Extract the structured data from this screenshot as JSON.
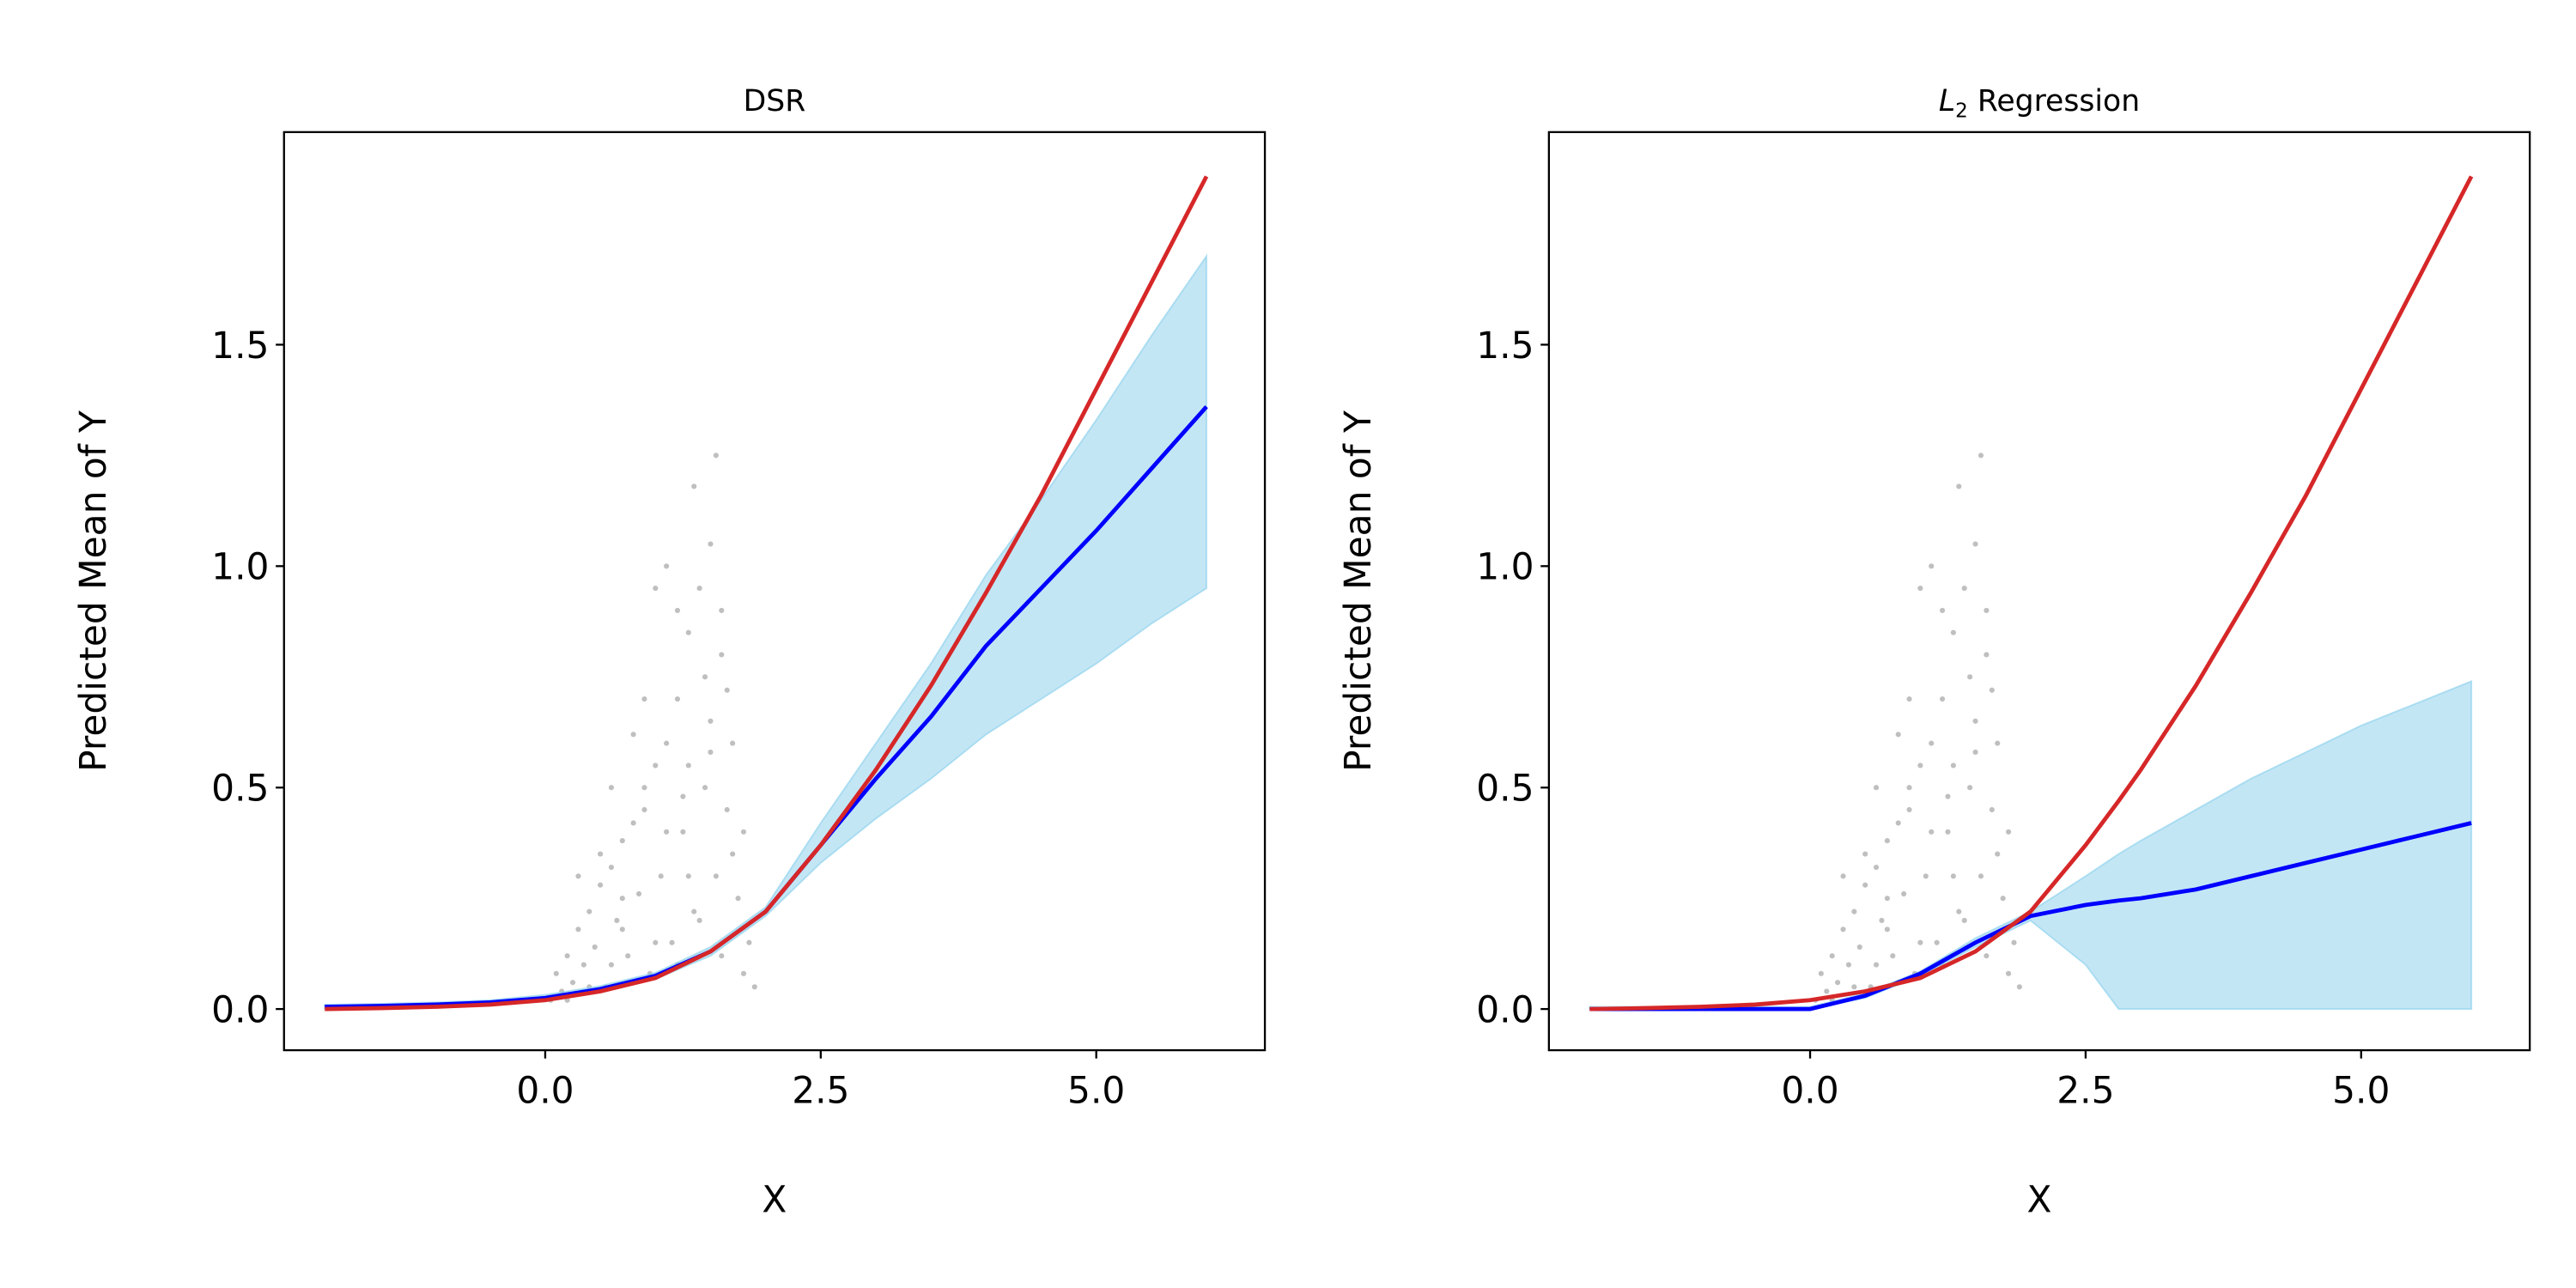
{
  "chart_data": [
    {
      "type": "line",
      "title": "DSR",
      "xlabel": "X",
      "ylabel": "Predicted Mean of Y",
      "xlim": [
        -2.37,
        6.53
      ],
      "ylim": [
        -0.093,
        1.98
      ],
      "xticks": [
        0.0,
        2.5,
        5.0
      ],
      "xtick_labels": [
        "0.0",
        "2.5",
        "5.0"
      ],
      "yticks": [
        0.0,
        0.5,
        1.0,
        1.5
      ],
      "ytick_labels": [
        "0.0",
        "0.5",
        "1.0",
        "1.5"
      ],
      "grid": false,
      "x": [
        -2,
        -1.5,
        -1,
        -0.5,
        0,
        0.5,
        1,
        1.5,
        2,
        2.5,
        3,
        3.5,
        4,
        4.5,
        5,
        5.5,
        6
      ],
      "true_mean": [
        0,
        0.002,
        0.005,
        0.01,
        0.02,
        0.04,
        0.07,
        0.13,
        0.22,
        0.37,
        0.54,
        0.73,
        0.94,
        1.16,
        1.4,
        1.64,
        1.88
      ],
      "predicted_mean": [
        0.005,
        0.007,
        0.01,
        0.015,
        0.025,
        0.045,
        0.075,
        0.13,
        0.22,
        0.37,
        0.52,
        0.66,
        0.82,
        0.95,
        1.08,
        1.22,
        1.36
      ],
      "band_lower": [
        0.0,
        0.002,
        0.005,
        0.01,
        0.018,
        0.038,
        0.068,
        0.12,
        0.21,
        0.33,
        0.43,
        0.52,
        0.62,
        0.7,
        0.78,
        0.87,
        0.95
      ],
      "band_upper": [
        0.01,
        0.012,
        0.015,
        0.02,
        0.032,
        0.052,
        0.082,
        0.14,
        0.23,
        0.42,
        0.6,
        0.78,
        0.98,
        1.15,
        1.33,
        1.52,
        1.7
      ]
    },
    {
      "type": "line",
      "title_parts": {
        "var": "L",
        "sub": "2",
        "rest": " Regression"
      },
      "xlabel": "X",
      "ylabel": "Predicted Mean of Y",
      "xlim": [
        -2.37,
        6.53
      ],
      "ylim": [
        -0.093,
        1.98
      ],
      "xticks": [
        0.0,
        2.5,
        5.0
      ],
      "xtick_labels": [
        "0.0",
        "2.5",
        "5.0"
      ],
      "yticks": [
        0.0,
        0.5,
        1.0,
        1.5
      ],
      "ytick_labels": [
        "0.0",
        "0.5",
        "1.0",
        "1.5"
      ],
      "grid": false,
      "x": [
        -2,
        -1.5,
        -1,
        -0.5,
        0,
        0.5,
        1,
        1.5,
        2,
        2.5,
        2.8,
        3,
        3.5,
        4,
        4.5,
        5,
        5.5,
        6
      ],
      "true_mean": [
        0,
        0.002,
        0.005,
        0.01,
        0.02,
        0.04,
        0.07,
        0.13,
        0.22,
        0.37,
        0.47,
        0.54,
        0.73,
        0.94,
        1.16,
        1.4,
        1.64,
        1.88
      ],
      "predicted_mean": [
        0,
        0,
        0,
        0,
        0,
        0.03,
        0.08,
        0.15,
        0.21,
        0.235,
        0.245,
        0.25,
        0.27,
        0.3,
        0.33,
        0.36,
        0.39,
        0.42
      ],
      "band_lower": [
        0,
        0,
        0,
        0,
        0,
        0.025,
        0.075,
        0.14,
        0.2,
        0.1,
        0.0,
        0.0,
        0.0,
        0.0,
        0.0,
        0.0,
        0.0,
        0.0
      ],
      "band_upper": [
        0.005,
        0.005,
        0.005,
        0.005,
        0.005,
        0.035,
        0.085,
        0.16,
        0.22,
        0.3,
        0.35,
        0.38,
        0.45,
        0.52,
        0.58,
        0.64,
        0.69,
        0.74
      ]
    }
  ],
  "scatter_sample": {
    "x": [
      0.05,
      0.1,
      0.15,
      0.2,
      0.25,
      0.3,
      0.35,
      0.4,
      0.45,
      0.5,
      0.55,
      0.6,
      0.65,
      0.7,
      0.75,
      0.8,
      0.85,
      0.9,
      0.95,
      1.0,
      1.05,
      1.1,
      1.15,
      1.2,
      1.25,
      1.3,
      1.35,
      1.4,
      1.45,
      1.5,
      1.55,
      1.6,
      1.65,
      1.7,
      1.75,
      1.8,
      1.85,
      1.9,
      0.2,
      0.4,
      0.6,
      0.8,
      1.0,
      1.2,
      1.4,
      1.6,
      1.8,
      0.3,
      0.5,
      0.7,
      0.9,
      1.1,
      1.3,
      1.5,
      1.7,
      0.6,
      0.9,
      1.2,
      1.35,
      1.55,
      1.45,
      1.0,
      0.8,
      1.25,
      1.65,
      1.1,
      1.5,
      1.3,
      0.7,
      1.6
    ],
    "y": [
      0.02,
      0.08,
      0.04,
      0.12,
      0.06,
      0.18,
      0.1,
      0.22,
      0.14,
      0.28,
      0.05,
      0.32,
      0.2,
      0.38,
      0.12,
      0.42,
      0.26,
      0.5,
      0.08,
      0.55,
      0.3,
      0.6,
      0.15,
      0.7,
      0.4,
      0.85,
      0.22,
      0.95,
      0.5,
      1.05,
      0.3,
      0.8,
      0.45,
      0.6,
      0.25,
      0.4,
      0.15,
      0.05,
      0.02,
      0.05,
      0.1,
      0.06,
      0.15,
      0.1,
      0.2,
      0.12,
      0.08,
      0.3,
      0.35,
      0.25,
      0.45,
      0.4,
      0.55,
      0.65,
      0.35,
      0.5,
      0.7,
      0.9,
      1.18,
      1.25,
      0.75,
      0.95,
      0.62,
      0.48,
      0.72,
      1.0,
      0.58,
      0.3,
      0.18,
      0.9
    ],
    "color": "#bfbfbf"
  },
  "colors": {
    "true_mean": "#d62728",
    "predicted_mean": "#0000ff",
    "band": "#87ceeb",
    "scatter": "#bfbfbf"
  }
}
